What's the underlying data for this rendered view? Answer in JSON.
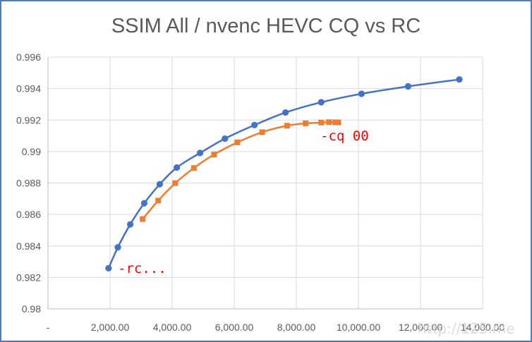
{
  "chart_data": {
    "type": "scatter",
    "title": "SSIM All / nvenc HEVC CQ vs RC",
    "xlabel": "",
    "ylabel": "",
    "xlim": [
      0,
      14000
    ],
    "ylim": [
      0.98,
      0.996
    ],
    "grid": true,
    "x_ticks": [
      0,
      2000,
      4000,
      6000,
      8000,
      10000,
      12000,
      14000
    ],
    "x_tick_labels": [
      "-",
      "2,000.00",
      "4,000.00",
      "6,000.00",
      "8,000.00",
      "10,000.00",
      "12,000.00",
      "14,000.00"
    ],
    "y_ticks": [
      0.98,
      0.982,
      0.984,
      0.986,
      0.988,
      0.99,
      0.992,
      0.994,
      0.996
    ],
    "y_tick_labels": [
      "0.98",
      "0.982",
      "0.984",
      "0.986",
      "0.988",
      "0.99",
      "0.992",
      "0.994",
      "0.996"
    ],
    "series": [
      {
        "name": "RC",
        "color": "#4472c4",
        "marker": "circle",
        "x": [
          1950,
          2250,
          2650,
          3100,
          3600,
          4150,
          4900,
          5700,
          6650,
          7650,
          8800,
          10100,
          11600,
          13250
        ],
        "y": [
          0.98258,
          0.98391,
          0.98537,
          0.98671,
          0.98792,
          0.98898,
          0.98991,
          0.99082,
          0.99168,
          0.99248,
          0.99313,
          0.99367,
          0.99414,
          0.99458
        ]
      },
      {
        "name": "CQ",
        "color": "#ed7d31",
        "marker": "square",
        "x": [
          3050,
          3550,
          4100,
          4700,
          5350,
          6100,
          6900,
          7700,
          8300,
          8800,
          9050,
          9250,
          9350
        ],
        "y": [
          0.98571,
          0.98688,
          0.98799,
          0.98895,
          0.98981,
          0.99058,
          0.99123,
          0.99164,
          0.99179,
          0.99184,
          0.99187,
          0.99186,
          0.99185
        ]
      }
    ],
    "annotations": [
      {
        "text": "-rc...",
        "color": "#ff0000"
      },
      {
        "text": "-cq 00",
        "color": "#ff0000"
      }
    ],
    "watermark": "http://125.me"
  }
}
